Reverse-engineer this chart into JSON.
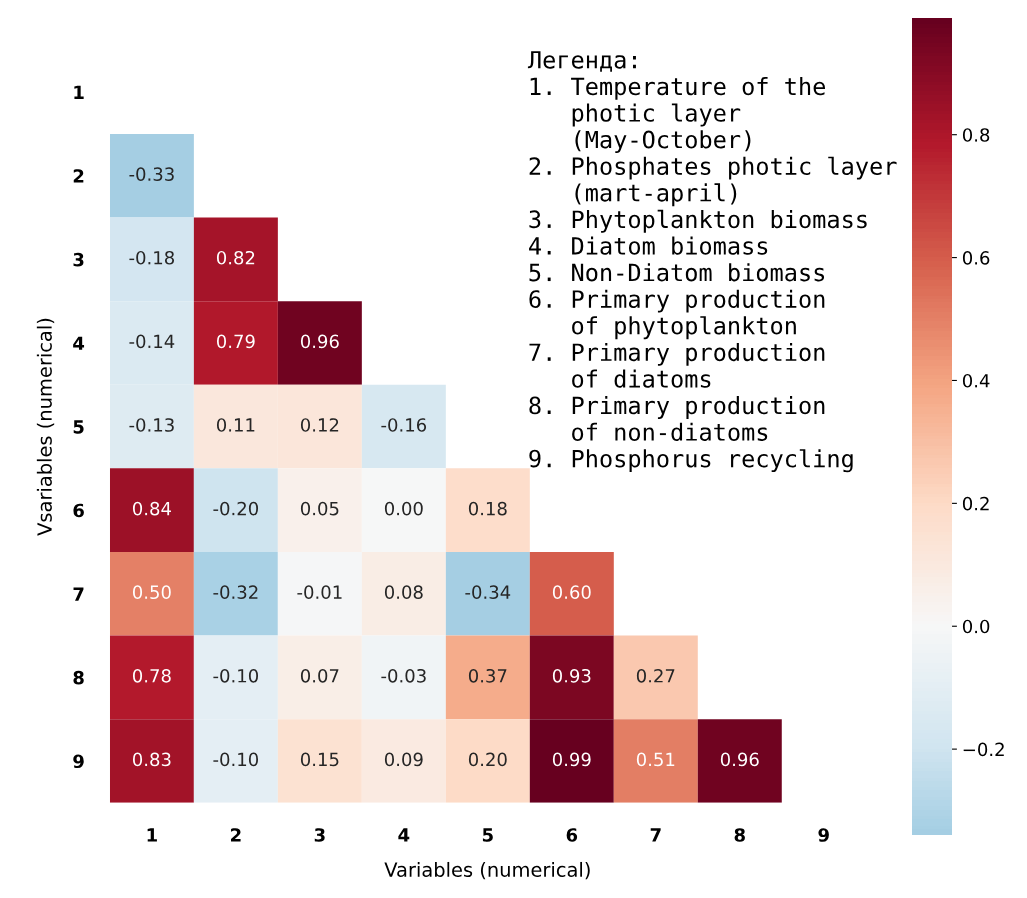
{
  "chart_data": {
    "type": "heatmap",
    "xlabel": "Variables (numerical)",
    "ylabel": "Vsariables (numerical)",
    "categories": [
      "1",
      "2",
      "3",
      "4",
      "5",
      "6",
      "7",
      "8",
      "9"
    ],
    "y_categories": [
      "1",
      "2",
      "3",
      "4",
      "5",
      "6",
      "7",
      "8",
      "9"
    ],
    "cells": [
      [
        null,
        null,
        null,
        null,
        null,
        null,
        null,
        null,
        null
      ],
      [
        -0.33,
        null,
        null,
        null,
        null,
        null,
        null,
        null,
        null
      ],
      [
        -0.18,
        0.82,
        null,
        null,
        null,
        null,
        null,
        null,
        null
      ],
      [
        -0.14,
        0.79,
        0.96,
        null,
        null,
        null,
        null,
        null,
        null
      ],
      [
        -0.13,
        0.11,
        0.12,
        -0.16,
        null,
        null,
        null,
        null,
        null
      ],
      [
        0.84,
        -0.2,
        0.05,
        0.0,
        0.18,
        null,
        null,
        null,
        null
      ],
      [
        0.5,
        -0.32,
        -0.01,
        0.08,
        -0.34,
        0.6,
        null,
        null,
        null
      ],
      [
        0.78,
        -0.1,
        0.07,
        -0.03,
        0.37,
        0.93,
        0.27,
        null,
        null
      ],
      [
        0.83,
        -0.1,
        0.15,
        0.09,
        0.2,
        0.99,
        0.51,
        0.96,
        null
      ]
    ],
    "cell_labels": [
      [
        null,
        null,
        null,
        null,
        null,
        null,
        null,
        null,
        null
      ],
      [
        "-0.33",
        null,
        null,
        null,
        null,
        null,
        null,
        null,
        null
      ],
      [
        "-0.18",
        "0.82",
        null,
        null,
        null,
        null,
        null,
        null,
        null
      ],
      [
        "-0.14",
        "0.79",
        "0.96",
        null,
        null,
        null,
        null,
        null,
        null
      ],
      [
        "-0.13",
        "0.11",
        "0.12",
        "-0.16",
        null,
        null,
        null,
        null,
        null
      ],
      [
        "0.84",
        "-0.20",
        "0.05",
        "0.00",
        "0.18",
        null,
        null,
        null,
        null
      ],
      [
        "0.50",
        "-0.32",
        "-0.01",
        "0.08",
        "-0.34",
        "0.60",
        null,
        null,
        null
      ],
      [
        "0.78",
        "-0.10",
        "0.07",
        "-0.03",
        "0.37",
        "0.93",
        "0.27",
        null,
        null
      ],
      [
        "0.83",
        "-0.10",
        "0.15",
        "0.09",
        "0.20",
        "0.99",
        "0.51",
        "0.96",
        null
      ]
    ],
    "clim": [
      -0.34,
      0.99
    ],
    "cticks": [
      {
        "value": -0.2,
        "label": "−0.2"
      },
      {
        "value": 0.0,
        "label": "0.0"
      },
      {
        "value": 0.2,
        "label": "0.2"
      },
      {
        "value": 0.4,
        "label": "0.4"
      },
      {
        "value": 0.6,
        "label": "0.6"
      },
      {
        "value": 0.8,
        "label": "0.8"
      }
    ],
    "annotations": [
      "Легенда:\n1. Temperature of the\n   photic layer\n   (May-October)\n2. Phosphates photic layer\n   (mart-april)\n3. Phytoplankton biomass\n4. Diatom biomass\n5. Non-Diatom biomass\n6. Primary production\n   of phytoplankton\n7. Primary production\n   of diatoms\n8. Primary production\n   of non-diatoms\n9. Phosphorus recycling"
    ]
  }
}
